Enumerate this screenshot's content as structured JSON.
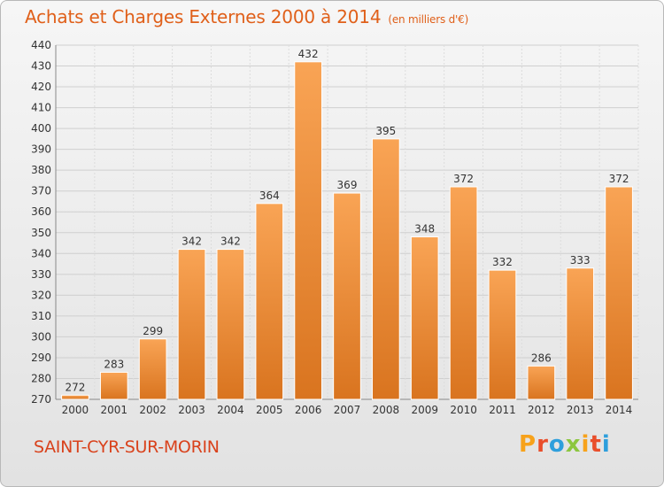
{
  "title": "Achats et Charges Externes 2000 à 2014",
  "unit": "(en milliers d'€)",
  "commune": "SAINT-CYR-SUR-MORIN",
  "brand": {
    "letters": [
      "P",
      "r",
      "o",
      "x",
      "i",
      "t",
      "i"
    ],
    "colors": [
      "#f7a21b",
      "#e94e2b",
      "#2e9fdc",
      "#8cc63f",
      "#f7a21b",
      "#e94e2b",
      "#2e9fdc"
    ]
  },
  "colors": {
    "bar_light": "#f9a455",
    "bar_dark": "#d9741f",
    "title": "#e0601a",
    "commune": "#d9421c"
  },
  "chart_data": {
    "type": "bar",
    "categories": [
      "2000",
      "2001",
      "2002",
      "2003",
      "2004",
      "2005",
      "2006",
      "2007",
      "2008",
      "2009",
      "2010",
      "2011",
      "2012",
      "2013",
      "2014"
    ],
    "values": [
      272,
      283,
      299,
      342,
      342,
      364,
      432,
      369,
      395,
      348,
      372,
      332,
      286,
      333,
      372
    ],
    "title": "Achats et Charges Externes 2000 à 2014",
    "ylim": [
      270,
      440
    ],
    "yticks": [
      270,
      280,
      290,
      300,
      310,
      320,
      330,
      340,
      350,
      360,
      370,
      380,
      390,
      400,
      410,
      420,
      430,
      440
    ],
    "grid": true
  }
}
